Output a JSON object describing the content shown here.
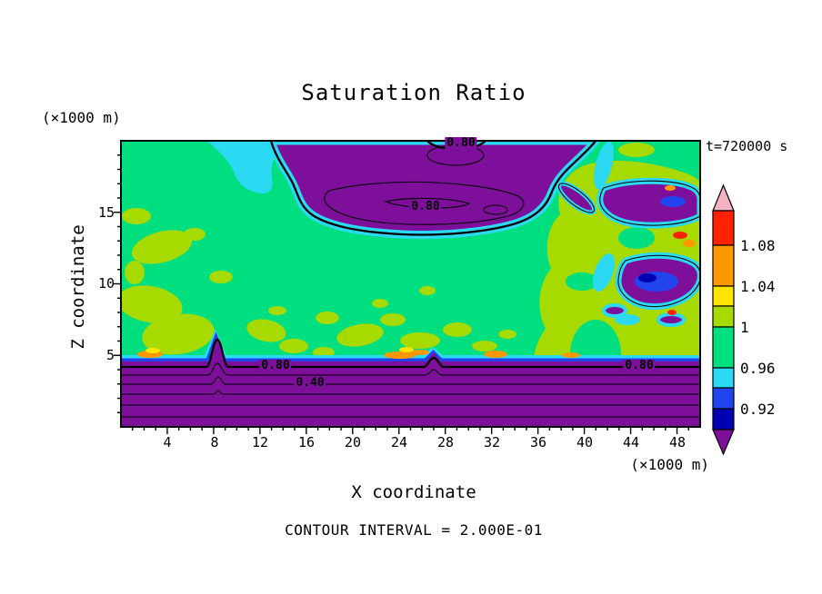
{
  "title": "Saturation Ratio",
  "timestamp": "t=720000 s",
  "footer_note": "CONTOUR INTERVAL = 2.000E-01",
  "axes": {
    "x_label": "X coordinate",
    "x_unit": "(×1000 m)",
    "y_label": "Z coordinate",
    "y_unit": "(×1000 m)",
    "x_ticks": [
      "4",
      "8",
      "12",
      "16",
      "20",
      "24",
      "28",
      "32",
      "36",
      "40",
      "44",
      "48"
    ],
    "y_ticks": [
      "15",
      "10",
      "5"
    ],
    "x_range": [
      0,
      50
    ],
    "y_range": [
      0,
      20
    ]
  },
  "colorbar": {
    "labels": [
      "1.08",
      "1.04",
      "1",
      "0.96",
      "0.92"
    ],
    "segments": [
      "red",
      "orange",
      "yellow",
      "light_green",
      "green",
      "cyan",
      "blue",
      "dark_blue"
    ],
    "arrow_top": "pink",
    "arrow_bottom": "purple"
  },
  "contour_labels": [
    "0.80",
    "0.80",
    "0.80",
    "0.40",
    "0.80"
  ],
  "palette": {
    "green": "#00df80",
    "light_green": "#a6da00",
    "cyan": "#2bd9f2",
    "blue": "#2244ee",
    "dark_blue": "#0000b0",
    "purple": "#7d0f9b",
    "yellow": "#ffe400",
    "orange": "#ff9800",
    "red": "#ff2200",
    "pink": "#f5b2c2",
    "frame": "#000000",
    "background": "#ffffff"
  },
  "chart_data": {
    "type": "heatmap",
    "subtype": "filled-contour",
    "field": "saturation ratio (dimensionless)",
    "title": "Saturation Ratio",
    "xlabel": "X coordinate",
    "ylabel": "Z coordinate",
    "axis_units": "×1000 m",
    "x_range": [
      0,
      50
    ],
    "z_range": [
      0,
      20
    ],
    "x_tick_step": 4,
    "z_tick_step": 5,
    "time_annotation": "t=720000 s",
    "contour_interval": 0.2,
    "color_scale": [
      {
        "range": "> 1.12",
        "color_key": "pink",
        "note": "top arrow"
      },
      {
        "range": "1.08 - 1.12",
        "color_key": "red"
      },
      {
        "range": "1.04 - 1.08",
        "color_key": "orange"
      },
      {
        "range": "1.02 - 1.04",
        "color_key": "yellow"
      },
      {
        "range": "1.00 - 1.02",
        "color_key": "light_green"
      },
      {
        "range": "0.96 - 1.00",
        "color_key": "green"
      },
      {
        "range": "0.94 - 0.96",
        "color_key": "cyan"
      },
      {
        "range": "0.92 - 0.94",
        "color_key": "blue"
      },
      {
        "range": "0.90 - 0.92",
        "color_key": "dark_blue"
      },
      {
        "range": "< 0.90",
        "color_key": "purple",
        "note": "bottom arrow"
      }
    ],
    "colorbar_boundary_labels": [
      1.08,
      1.04,
      1,
      0.96,
      0.92
    ],
    "labeled_contours": [
      {
        "value": 0.8,
        "text": "0.80",
        "x": 29.4,
        "z": 19.8
      },
      {
        "value": 0.8,
        "text": "0.80",
        "x": 26.3,
        "z": 15.4
      },
      {
        "value": 0.8,
        "text": "0.80",
        "x": 13.3,
        "z": 4.3
      },
      {
        "value": 0.4,
        "text": "0.40",
        "x": 16.3,
        "z": 3.0
      },
      {
        "value": 0.8,
        "text": "0.80",
        "x": 44.7,
        "z": 4.3
      }
    ],
    "regions": [
      {
        "area": "upper-troposphere blob, x 13-41, z 13.5-20",
        "value": "< 0.8 subsaturated (purple) with cyan rim and thick 0.8 contour, nested thin interior contours"
      },
      {
        "area": "boundary layer, z < 4.6, full width",
        "value": "strongly subsaturated (purple); stacked horizontal contours 0.8, 0.6, 0.4, 0.2 toward surface; two narrow upward spikes near x 8.5 and x 27"
      },
      {
        "area": "mid-troposphere background",
        "value": "0.96 - 1.00 (green)"
      },
      {
        "area": "scattered patches left, center and right side",
        "value": "1.00 - 1.04 slightly supersaturated (light green)"
      },
      {
        "area": "right side pockets x 41-50 at z 9-12.5 and z 14-16.5",
        "value": "< 0.92 (purple / blue cores with cyan rims)"
      },
      {
        "area": "thin spots along cloud-layer top z ~4.8 and right edge",
        "value": "1.04 - 1.12 (yellow / orange / red specks)"
      }
    ],
    "legend_position": "right colorbar with arrow ends",
    "grid": false
  }
}
